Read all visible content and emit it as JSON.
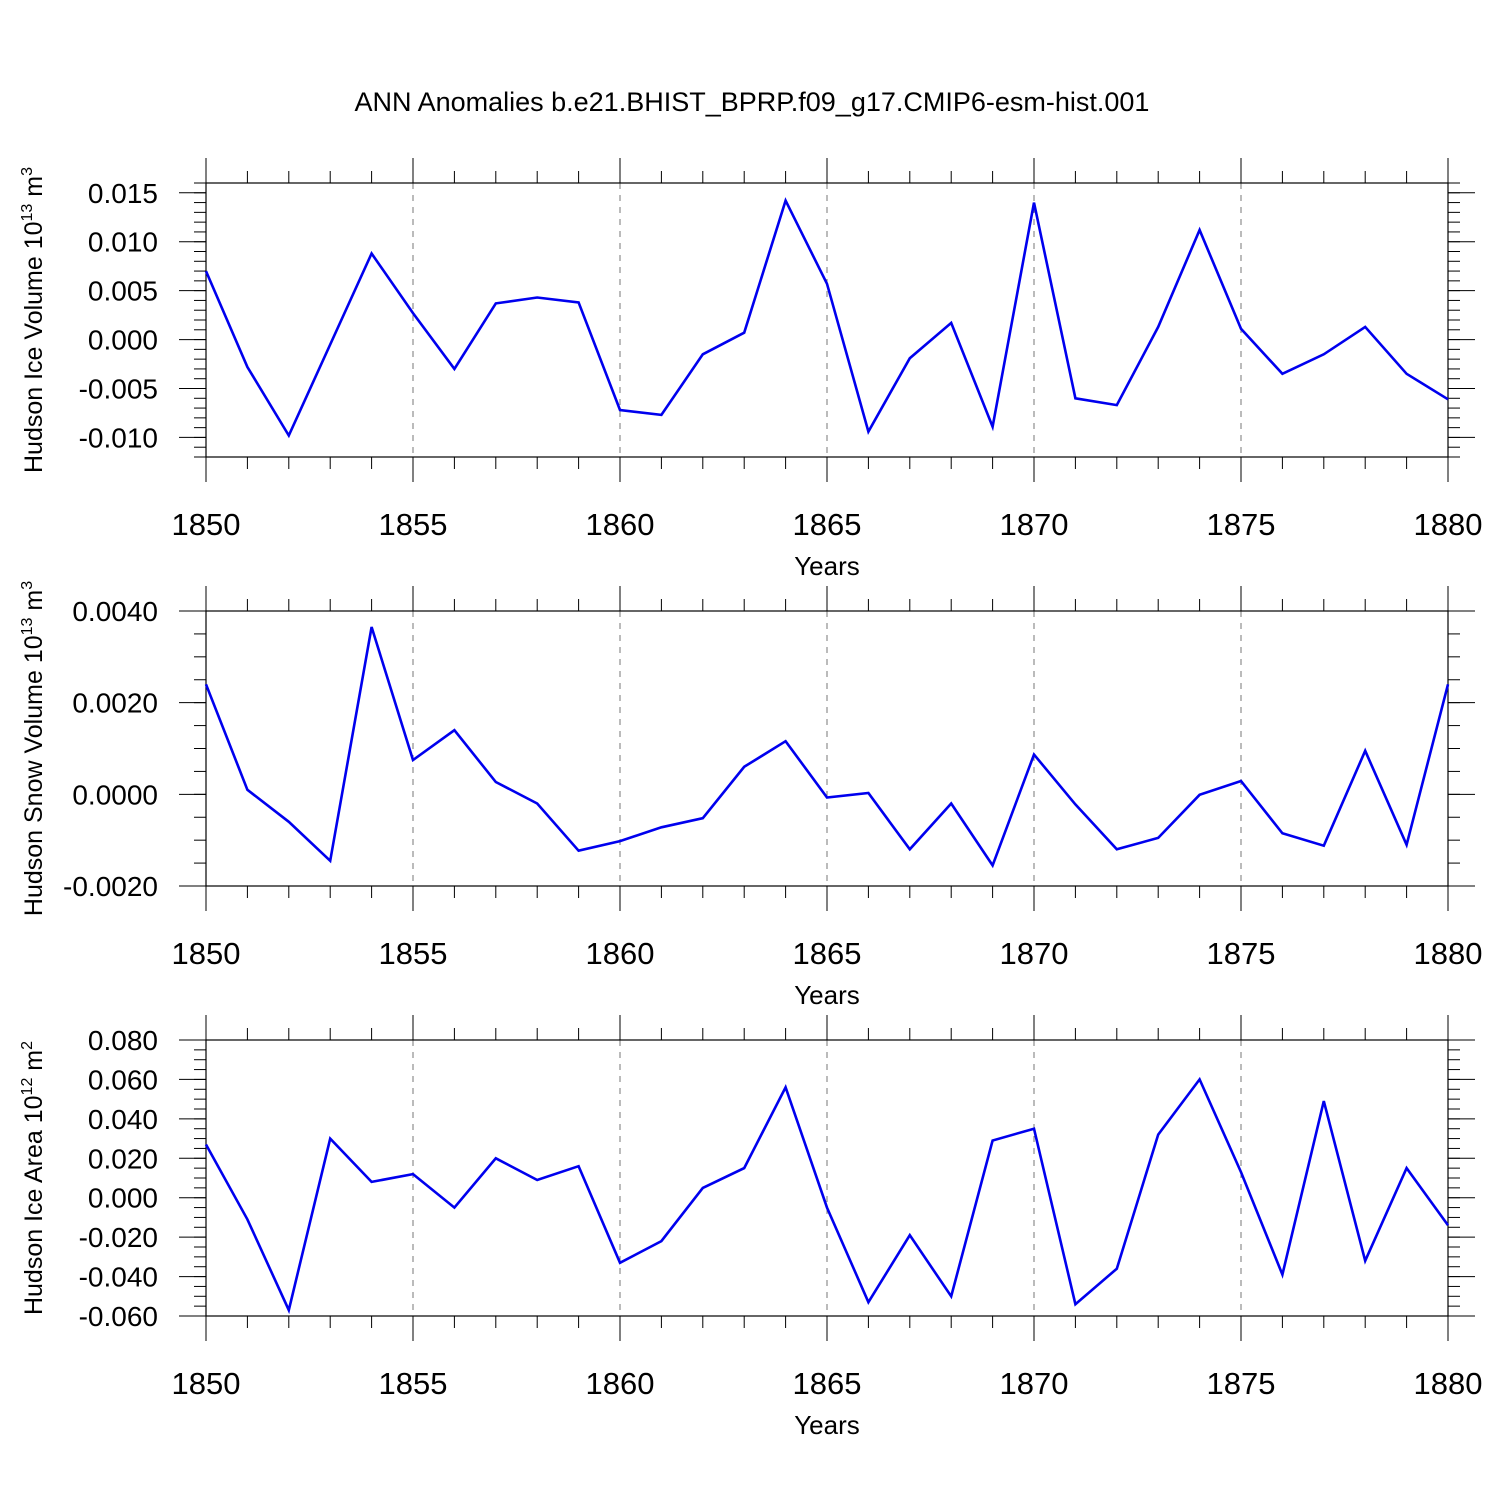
{
  "title": "ANN Anomalies b.e21.BHIST_BPRP.f09_g17.CMIP6-esm-hist.001",
  "line_color": "#0000ee",
  "chart_data": [
    {
      "type": "line",
      "title": "ANN Anomalies b.e21.BHIST_BPRP.f09_g17.CMIP6-esm-hist.001",
      "xlabel": "Years",
      "ylabel": {
        "text": "Hudson Ice Volume 10",
        "sup": "13",
        "unit": " m",
        "unit_sup": "3"
      },
      "xlim": [
        1850,
        1880
      ],
      "ylim": [
        -0.012,
        0.016
      ],
      "x_ticks": [
        "1850",
        "1855",
        "1860",
        "1865",
        "1870",
        "1875",
        "1880"
      ],
      "y_ticks": [
        0.015,
        0.01,
        0.005,
        0.0,
        -0.005,
        -0.01
      ],
      "y_tick_labels": [
        "0.015",
        "0.010",
        "0.005",
        "0.000",
        "-0.005",
        "-0.010"
      ],
      "y_minor_step": 0.001,
      "grid": "dashed vertical at major x ticks",
      "x": [
        1850,
        1851,
        1852,
        1853,
        1854,
        1855,
        1856,
        1857,
        1858,
        1859,
        1860,
        1861,
        1862,
        1863,
        1864,
        1865,
        1866,
        1867,
        1868,
        1869,
        1870,
        1871,
        1872,
        1873,
        1874,
        1875,
        1876,
        1877,
        1878,
        1879,
        1880
      ],
      "values": [
        0.007,
        -0.0028,
        -0.0098,
        -0.0005,
        0.0088,
        0.0027,
        -0.003,
        0.0037,
        0.0043,
        0.0038,
        -0.0072,
        -0.0077,
        -0.0015,
        0.0007,
        0.0142,
        0.0057,
        -0.0094,
        -0.0019,
        0.0017,
        -0.0089,
        0.014,
        -0.006,
        -0.0067,
        0.0013,
        0.0112,
        0.0011,
        -0.0035,
        -0.0015,
        0.0013,
        -0.0035,
        -0.0061
      ]
    },
    {
      "type": "line",
      "xlabel": "Years",
      "ylabel": {
        "text": "Hudson Snow Volume 10",
        "sup": "13",
        "unit": " m",
        "unit_sup": "3"
      },
      "xlim": [
        1850,
        1880
      ],
      "ylim": [
        -0.002,
        0.004
      ],
      "x_ticks": [
        "1850",
        "1855",
        "1860",
        "1865",
        "1870",
        "1875",
        "1880"
      ],
      "y_ticks": [
        0.004,
        0.002,
        0.0,
        -0.002
      ],
      "y_tick_labels": [
        "0.0040",
        "0.0020",
        "0.0000",
        "-0.0020"
      ],
      "y_minor_step": 0.0005,
      "grid": "dashed vertical at major x ticks",
      "x": [
        1850,
        1851,
        1852,
        1853,
        1854,
        1855,
        1856,
        1857,
        1858,
        1859,
        1860,
        1861,
        1862,
        1863,
        1864,
        1865,
        1866,
        1867,
        1868,
        1869,
        1870,
        1871,
        1872,
        1873,
        1874,
        1875,
        1876,
        1877,
        1878,
        1879,
        1880
      ],
      "values": [
        0.0024,
        0.0001,
        -0.0006,
        -0.00145,
        0.00365,
        0.00075,
        0.0014,
        0.00027,
        -0.0002,
        -0.00123,
        -0.00102,
        -0.00072,
        -0.00052,
        0.0006,
        0.00116,
        -7e-05,
        3e-05,
        -0.0012,
        -0.0002,
        -0.00155,
        0.00087,
        -0.00022,
        -0.0012,
        -0.00095,
        -1e-05,
        0.00029,
        -0.00085,
        -0.00112,
        0.00095,
        -0.0011,
        0.0024
      ]
    },
    {
      "type": "line",
      "xlabel": "Years",
      "ylabel": {
        "text": "Hudson Ice Area 10",
        "sup": "12",
        "unit": " m",
        "unit_sup": "2"
      },
      "xlim": [
        1850,
        1880
      ],
      "ylim": [
        -0.06,
        0.08
      ],
      "x_ticks": [
        "1850",
        "1855",
        "1860",
        "1865",
        "1870",
        "1875",
        "1880"
      ],
      "y_ticks": [
        0.08,
        0.06,
        0.04,
        0.02,
        0.0,
        -0.02,
        -0.04,
        -0.06
      ],
      "y_tick_labels": [
        "0.080",
        "0.060",
        "0.040",
        "0.020",
        "0.000",
        "-0.020",
        "-0.040",
        "-0.060"
      ],
      "y_minor_step": 0.005,
      "grid": "dashed vertical at major x ticks",
      "x": [
        1850,
        1851,
        1852,
        1853,
        1854,
        1855,
        1856,
        1857,
        1858,
        1859,
        1860,
        1861,
        1862,
        1863,
        1864,
        1865,
        1866,
        1867,
        1868,
        1869,
        1870,
        1871,
        1872,
        1873,
        1874,
        1875,
        1876,
        1877,
        1878,
        1879,
        1880
      ],
      "values": [
        0.027,
        -0.011,
        -0.057,
        0.03,
        0.008,
        0.012,
        -0.005,
        0.02,
        0.009,
        0.016,
        -0.033,
        -0.022,
        0.005,
        0.015,
        0.056,
        -0.005,
        -0.053,
        -0.019,
        -0.05,
        0.029,
        0.035,
        -0.054,
        -0.036,
        0.032,
        0.06,
        0.013,
        -0.039,
        0.049,
        -0.032,
        0.015,
        -0.014
      ]
    }
  ]
}
